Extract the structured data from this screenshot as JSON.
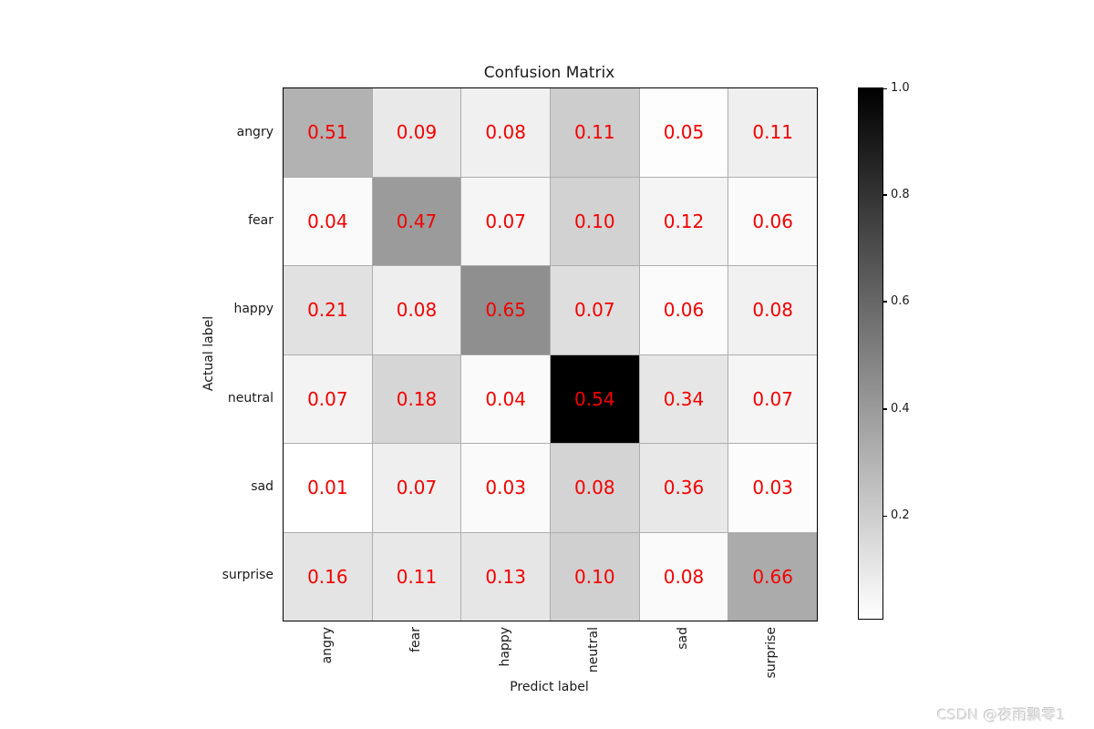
{
  "watermark": {
    "text": "CSDN @夜雨飘零1"
  },
  "chart_data": {
    "type": "heatmap",
    "title": "Confusion Matrix",
    "xlabel": "Predict label",
    "ylabel": "Actual label",
    "x_categories": [
      "angry",
      "fear",
      "happy",
      "neutral",
      "sad",
      "surprise"
    ],
    "y_categories": [
      "angry",
      "fear",
      "happy",
      "neutral",
      "sad",
      "surprise"
    ],
    "values": [
      [
        "0.51",
        "0.09",
        "0.08",
        "0.11",
        "0.05",
        "0.11"
      ],
      [
        "0.04",
        "0.47",
        "0.07",
        "0.10",
        "0.12",
        "0.06"
      ],
      [
        "0.21",
        "0.08",
        "0.65",
        "0.07",
        "0.06",
        "0.08"
      ],
      [
        "0.07",
        "0.18",
        "0.04",
        "0.54",
        "0.34",
        "0.07"
      ],
      [
        "0.01",
        "0.07",
        "0.03",
        "0.08",
        "0.36",
        "0.03"
      ],
      [
        "0.16",
        "0.11",
        "0.13",
        "0.10",
        "0.08",
        "0.66"
      ]
    ],
    "cell_colors": [
      [
        "#b2b2b2",
        "#e9e9e9",
        "#f0f0f0",
        "#cdcdcd",
        "#fdfdfd",
        "#efefef"
      ],
      [
        "#fafafa",
        "#9b9b9b",
        "#f5f5f5",
        "#d2d2d2",
        "#f4f4f4",
        "#fafafa"
      ],
      [
        "#e1e1e1",
        "#eeeeee",
        "#8f8f8f",
        "#dedede",
        "#fbfbfb",
        "#f1f1f1"
      ],
      [
        "#f3f3f3",
        "#d6d6d6",
        "#fafafa",
        "#000000",
        "#e6e6e6",
        "#f5f5f5"
      ],
      [
        "#ffffff",
        "#efefef",
        "#fafafa",
        "#d4d4d4",
        "#e8e8e8",
        "#fcfcfc"
      ],
      [
        "#e4e4e4",
        "#e8e8e8",
        "#e6e6e6",
        "#d0d0d0",
        "#fafafa",
        "#ababab"
      ]
    ],
    "value_text_color": "#f40000",
    "grid_line_color": "#adadad",
    "colormap": "gray (1.0 = black, 0.0 = white)",
    "grid": true,
    "legend_position": "right-colorbar",
    "colorbar": {
      "gradient_top": "#000000",
      "gradient_bottom": "#ffffff",
      "range": [
        0,
        1
      ],
      "ticks": [
        {
          "label": "1.0",
          "pos": 0.002
        },
        {
          "label": "0.8",
          "pos": 0.202
        },
        {
          "label": "0.6",
          "pos": 0.402
        },
        {
          "label": "0.4",
          "pos": 0.604
        },
        {
          "label": "0.2",
          "pos": 0.805
        }
      ]
    }
  }
}
